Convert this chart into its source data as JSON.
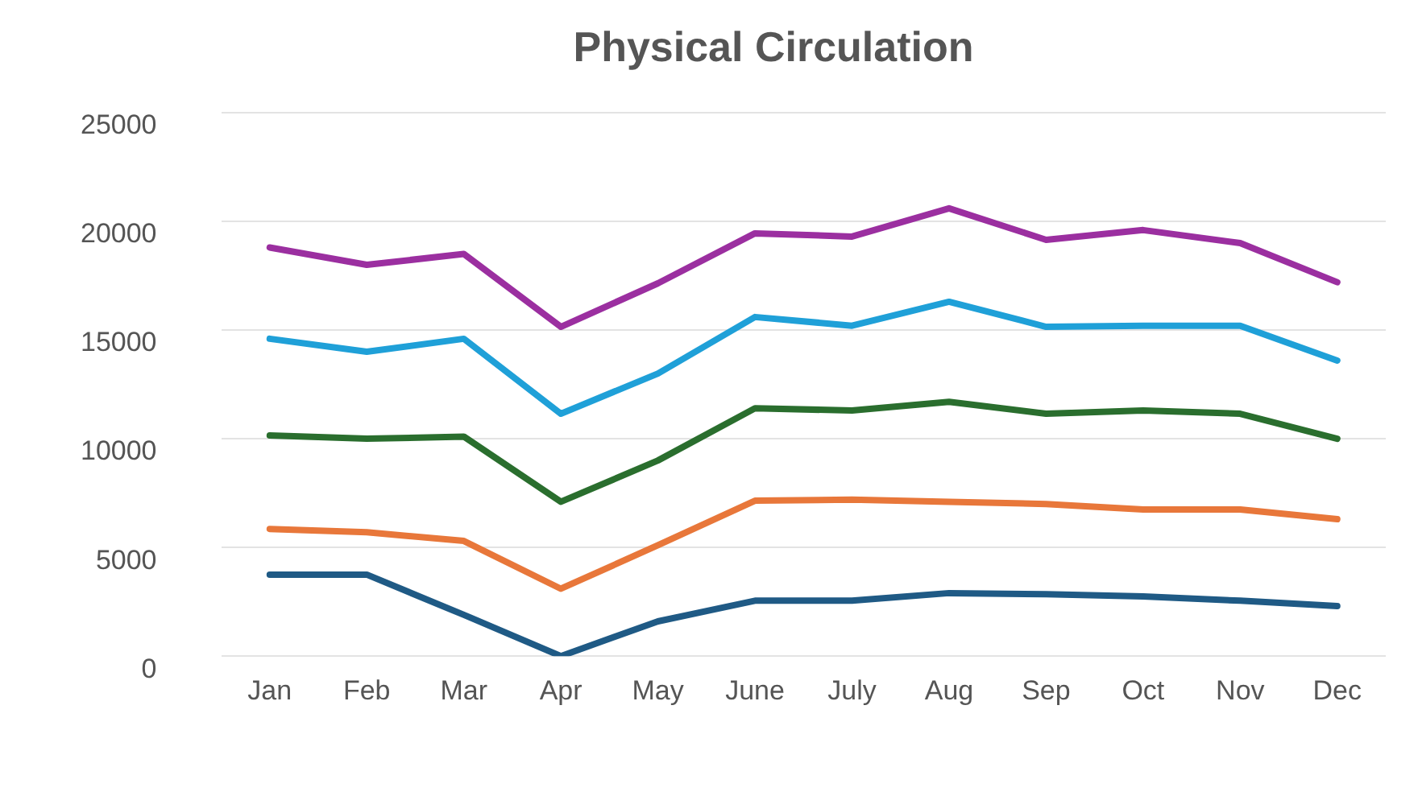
{
  "chart_data": {
    "type": "line",
    "title": "Physical Circulation",
    "categories": [
      "Jan",
      "Feb",
      "Mar",
      "Apr",
      "May",
      "June",
      "July",
      "Aug",
      "Sep",
      "Oct",
      "Nov",
      "Dec"
    ],
    "series": [
      {
        "color": "#9b2fa0",
        "values": [
          18800,
          18000,
          18500,
          15150,
          17150,
          19450,
          19300,
          20600,
          19150,
          19600,
          19000,
          17200
        ]
      },
      {
        "color": "#1fa0d8",
        "values": [
          14600,
          14000,
          14600,
          11150,
          13000,
          15600,
          15200,
          16300,
          15150,
          15200,
          15200,
          13600
        ]
      },
      {
        "color": "#2a6e2e",
        "values": [
          10150,
          10000,
          10100,
          7100,
          9000,
          11400,
          11300,
          11700,
          11150,
          11300,
          11150,
          10000
        ]
      },
      {
        "color": "#e8773a",
        "values": [
          5850,
          5700,
          5300,
          3100,
          5100,
          7150,
          7200,
          7100,
          7000,
          6750,
          6750,
          6300
        ]
      },
      {
        "color": "#1f5a85",
        "values": [
          3750,
          3750,
          1900,
          0,
          1600,
          2550,
          2550,
          2900,
          2850,
          2750,
          2550,
          2300
        ]
      }
    ],
    "ylim": [
      0,
      25000
    ],
    "yticks": [
      0,
      5000,
      10000,
      15000,
      20000,
      25000
    ],
    "grid": "y",
    "legend": false,
    "marker": "none",
    "line_style": "solid"
  }
}
